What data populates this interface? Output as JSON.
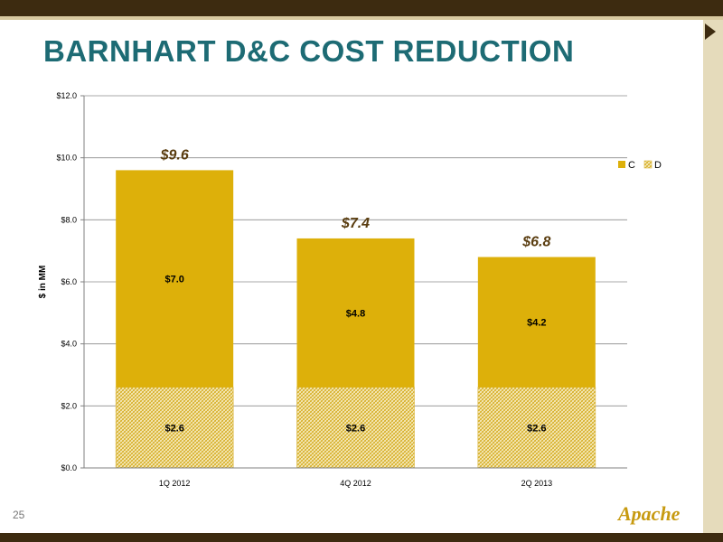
{
  "slide": {
    "title": "BARNHART D&C COST REDUCTION",
    "page_number": "25",
    "logo_text": "Apache"
  },
  "colors": {
    "completion": "#ddb00a",
    "drilling_hatch": "#e2c04d",
    "title": "#1d6b74",
    "total_label": "#5a3d10"
  },
  "chart_data": {
    "type": "bar",
    "stacked": true,
    "categories": [
      "1Q 2012",
      "4Q 2012",
      "2Q 2013"
    ],
    "series": [
      {
        "name": "D",
        "values": [
          2.6,
          2.6,
          2.6
        ],
        "labels": [
          "$2.6",
          "$2.6",
          "$2.6"
        ],
        "pattern": "hatched"
      },
      {
        "name": "C",
        "values": [
          7.0,
          4.8,
          4.2
        ],
        "labels": [
          "$7.0",
          "$4.8",
          "$4.2"
        ],
        "pattern": "solid"
      }
    ],
    "totals": [
      9.6,
      7.4,
      6.8
    ],
    "total_labels": [
      "$9.6",
      "$7.4",
      "$6.8"
    ],
    "ylabel": "$ in MM",
    "xlabel": "",
    "ylim": [
      0,
      12
    ],
    "yticks": [
      "$0.0",
      "$2.0",
      "$4.0",
      "$6.0",
      "$8.0",
      "$10.0",
      "$12.0"
    ],
    "grid": true,
    "legend": [
      "C",
      "D"
    ],
    "legend_position": "right"
  }
}
